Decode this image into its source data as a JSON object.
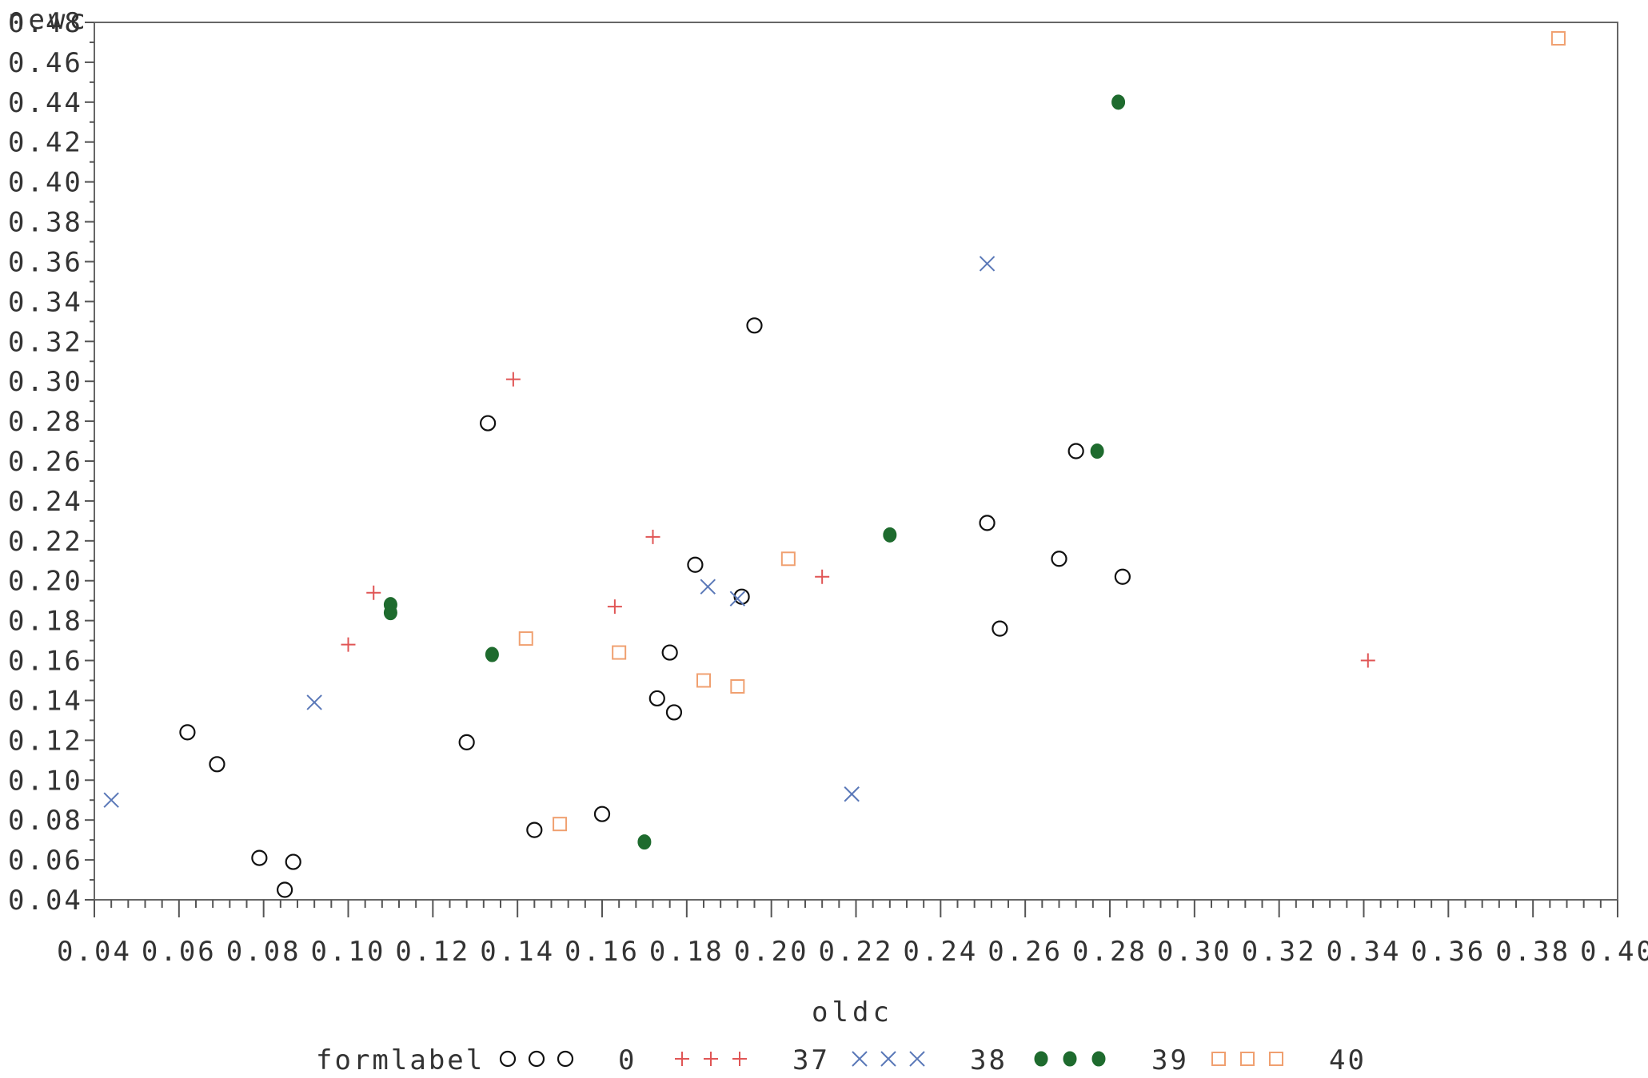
{
  "chart_data": {
    "type": "scatter",
    "xlabel": "oldc",
    "ylabel": "newc",
    "xlim": [
      0.04,
      0.4
    ],
    "ylim": [
      0.04,
      0.48
    ],
    "x_ticks": [
      "0.04",
      "0.06",
      "0.08",
      "0.10",
      "0.12",
      "0.14",
      "0.16",
      "0.18",
      "0.20",
      "0.22",
      "0.24",
      "0.26",
      "0.28",
      "0.30",
      "0.32",
      "0.34",
      "0.36",
      "0.38",
      "0.40"
    ],
    "y_ticks": [
      "0.04",
      "0.06",
      "0.08",
      "0.10",
      "0.12",
      "0.14",
      "0.16",
      "0.18",
      "0.20",
      "0.22",
      "0.24",
      "0.26",
      "0.28",
      "0.30",
      "0.32",
      "0.34",
      "0.36",
      "0.38",
      "0.40",
      "0.42",
      "0.44",
      "0.46",
      "0.48"
    ],
    "legend": {
      "title": "formlabel",
      "placement": "bottom"
    },
    "series": [
      {
        "name": "0",
        "marker": "circle-open",
        "color": "#111111",
        "points": [
          [
            0.062,
            0.124
          ],
          [
            0.069,
            0.108
          ],
          [
            0.079,
            0.061
          ],
          [
            0.085,
            0.045
          ],
          [
            0.087,
            0.059
          ],
          [
            0.128,
            0.119
          ],
          [
            0.133,
            0.279
          ],
          [
            0.144,
            0.075
          ],
          [
            0.16,
            0.083
          ],
          [
            0.173,
            0.141
          ],
          [
            0.176,
            0.164
          ],
          [
            0.177,
            0.134
          ],
          [
            0.182,
            0.208
          ],
          [
            0.193,
            0.192
          ],
          [
            0.196,
            0.328
          ],
          [
            0.251,
            0.229
          ],
          [
            0.254,
            0.176
          ],
          [
            0.268,
            0.211
          ],
          [
            0.272,
            0.265
          ],
          [
            0.283,
            0.202
          ]
        ]
      },
      {
        "name": "37",
        "marker": "plus",
        "color": "#e05555",
        "points": [
          [
            0.1,
            0.168
          ],
          [
            0.106,
            0.194
          ],
          [
            0.139,
            0.301
          ],
          [
            0.163,
            0.187
          ],
          [
            0.172,
            0.222
          ],
          [
            0.212,
            0.202
          ],
          [
            0.341,
            0.16
          ]
        ]
      },
      {
        "name": "38",
        "marker": "x",
        "color": "#5a78b8",
        "points": [
          [
            0.044,
            0.09
          ],
          [
            0.092,
            0.139
          ],
          [
            0.185,
            0.197
          ],
          [
            0.192,
            0.191
          ],
          [
            0.219,
            0.093
          ],
          [
            0.251,
            0.359
          ]
        ]
      },
      {
        "name": "39",
        "marker": "circle-filled",
        "color": "#1e6b2e",
        "points": [
          [
            0.11,
            0.188
          ],
          [
            0.11,
            0.184
          ],
          [
            0.134,
            0.163
          ],
          [
            0.17,
            0.069
          ],
          [
            0.228,
            0.223
          ],
          [
            0.277,
            0.265
          ],
          [
            0.282,
            0.44
          ]
        ]
      },
      {
        "name": "40",
        "marker": "square-open",
        "color": "#f0a070",
        "points": [
          [
            0.142,
            0.171
          ],
          [
            0.15,
            0.078
          ],
          [
            0.164,
            0.164
          ],
          [
            0.184,
            0.15
          ],
          [
            0.192,
            0.147
          ],
          [
            0.204,
            0.211
          ],
          [
            0.386,
            0.472
          ]
        ]
      }
    ]
  }
}
